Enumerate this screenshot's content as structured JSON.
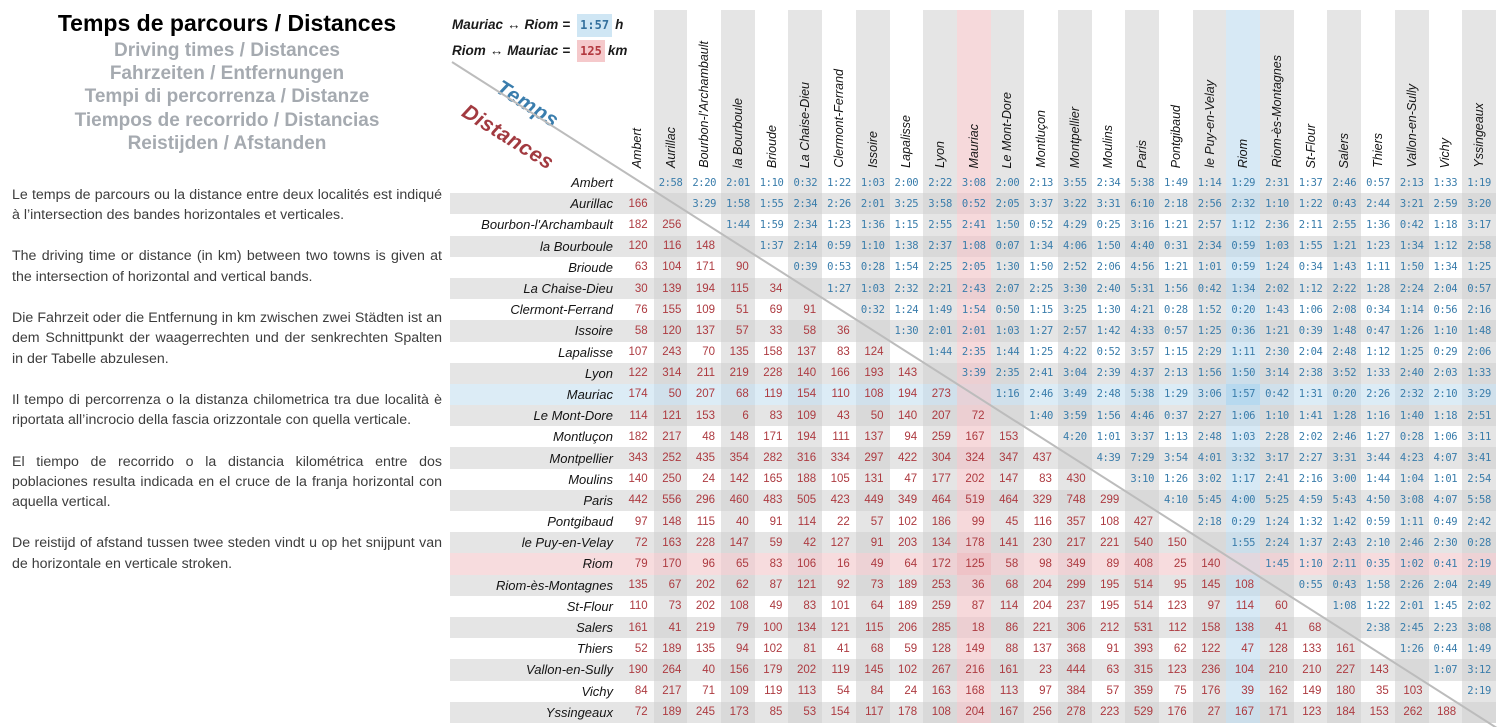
{
  "left": {
    "title": "Temps de parcours / Distances",
    "subtitles": [
      "Driving times / Distances",
      "Fahrzeiten / Entfernungen",
      "Tempi di percorrenza / Distanze",
      "Tiempos de recorrido / Distancias",
      "Reistijden / Afstanden"
    ],
    "paragraphs": [
      "Le temps de parcours ou la distance entre deux localités est indiqué à l’intersection des bandes horizontales et verticales.",
      "The driving time or distance (in km) between two towns is given at the intersection of horizontal and vertical bands.",
      "Die Fahrzeit oder die Entfernung in km zwischen zwei Städten ist an dem Schnittpunkt der waagerrechten und der senkrechten Spalten in der Tabelle abzulesen.",
      "Il tempo di percorrenza o la distanza chilometrica tra due località è riportata all’incrocio della fascia orizzontale con quella verticale.",
      "El tiempo de recorrido o la distancia kilométrica entre dos poblaciones resulta indicada en el cruce de la franja horizontal con aquella vertical.",
      "De reistijd of afstand tussen twee steden vindt u op het snijpunt van de horizontale en verticale stroken."
    ]
  },
  "legend": {
    "time_example": {
      "from": "Mauriac",
      "arrow": "↔",
      "to": "Riom",
      "equals": "=",
      "value": "1:57",
      "unit": "h"
    },
    "distance_example": {
      "from": "Riom",
      "arrow": "↔",
      "to": "Mauriac",
      "equals": "=",
      "value": "125",
      "unit": "km"
    }
  },
  "diagonal_labels": {
    "times": "Temps",
    "distances": "Distances"
  },
  "colors": {
    "time_text": "#3a7dab",
    "distance_text": "#ad3a40",
    "time_highlight_chip": "#cfe6f4",
    "distance_highlight_chip": "#f5c9cb",
    "pink_column_town": "Mauriac",
    "blue_column_town": "Riom"
  },
  "towns": [
    "Ambert",
    "Aurillac",
    "Bourbon-l'Archambault",
    "la Bourboule",
    "Brioude",
    "La Chaise-Dieu",
    "Clermont-Ferrand",
    "Issoire",
    "Lapalisse",
    "Lyon",
    "Mauriac",
    "Le Mont-Dore",
    "Montluçon",
    "Montpellier",
    "Moulins",
    "Paris",
    "Pontgibaud",
    "le Puy-en-Velay",
    "Riom",
    "Riom-ès-Montagnes",
    "St-Flour",
    "Salers",
    "Thiers",
    "Vallon-en-Sully",
    "Vichy",
    "Yssingeaux"
  ],
  "highlights": {
    "pink_index": 10,
    "blue_index": 18
  },
  "matrix": {
    "rows": [
      {
        "town": "Ambert",
        "distances_km": [],
        "times_h": [
          "2:58",
          "2:20",
          "2:01",
          "1:10",
          "0:32",
          "1:22",
          "1:03",
          "2:00",
          "2:22",
          "3:08",
          "2:00",
          "2:13",
          "3:55",
          "2:34",
          "5:38",
          "1:49",
          "1:14",
          "1:29",
          "2:31",
          "1:37",
          "2:46",
          "0:57",
          "2:13",
          "1:33",
          "1:19"
        ]
      },
      {
        "town": "Aurillac",
        "distances_km": [
          166
        ],
        "times_h": [
          "3:29",
          "1:58",
          "1:55",
          "2:34",
          "2:26",
          "2:01",
          "3:25",
          "3:58",
          "0:52",
          "2:05",
          "3:37",
          "3:22",
          "3:31",
          "6:10",
          "2:18",
          "2:56",
          "2:32",
          "1:10",
          "1:22",
          "0:43",
          "2:44",
          "3:21",
          "2:59",
          "3:20"
        ]
      },
      {
        "town": "Bourbon-l'Archambault",
        "distances_km": [
          182,
          256
        ],
        "times_h": [
          "1:44",
          "1:59",
          "2:34",
          "1:23",
          "1:36",
          "1:15",
          "2:55",
          "2:41",
          "1:50",
          "0:52",
          "4:29",
          "0:25",
          "3:16",
          "1:21",
          "2:57",
          "1:12",
          "2:36",
          "2:11",
          "2:55",
          "1:36",
          "0:42",
          "1:18",
          "3:17"
        ]
      },
      {
        "town": "la Bourboule",
        "distances_km": [
          120,
          116,
          148
        ],
        "times_h": [
          "1:37",
          "2:14",
          "0:59",
          "1:10",
          "1:38",
          "2:37",
          "1:08",
          "0:07",
          "1:34",
          "4:06",
          "1:50",
          "4:40",
          "0:31",
          "2:34",
          "0:59",
          "1:03",
          "1:55",
          "1:21",
          "1:23",
          "1:34",
          "1:12",
          "2:58"
        ]
      },
      {
        "town": "Brioude",
        "distances_km": [
          63,
          104,
          171,
          90
        ],
        "times_h": [
          "0:39",
          "0:53",
          "0:28",
          "1:54",
          "2:25",
          "2:05",
          "1:30",
          "1:50",
          "2:52",
          "2:06",
          "4:56",
          "1:21",
          "1:01",
          "0:59",
          "1:24",
          "0:34",
          "1:43",
          "1:11",
          "1:50",
          "1:34",
          "1:25"
        ]
      },
      {
        "town": "La Chaise-Dieu",
        "distances_km": [
          30,
          139,
          194,
          115,
          34
        ],
        "times_h": [
          "1:27",
          "1:03",
          "2:32",
          "2:21",
          "2:43",
          "2:07",
          "2:25",
          "3:30",
          "2:40",
          "5:31",
          "1:56",
          "0:42",
          "1:34",
          "2:02",
          "1:12",
          "2:22",
          "1:28",
          "2:24",
          "2:04",
          "0:57"
        ]
      },
      {
        "town": "Clermont-Ferrand",
        "distances_km": [
          76,
          155,
          109,
          51,
          69,
          91
        ],
        "times_h": [
          "0:32",
          "1:24",
          "1:49",
          "1:54",
          "0:50",
          "1:15",
          "3:25",
          "1:30",
          "4:21",
          "0:28",
          "1:52",
          "0:20",
          "1:43",
          "1:06",
          "2:08",
          "0:34",
          "1:14",
          "0:56",
          "2:16"
        ]
      },
      {
        "town": "Issoire",
        "distances_km": [
          58,
          120,
          137,
          57,
          33,
          58,
          36
        ],
        "times_h": [
          "1:30",
          "2:01",
          "2:01",
          "1:03",
          "1:27",
          "2:57",
          "1:42",
          "4:33",
          "0:57",
          "1:25",
          "0:36",
          "1:21",
          "0:39",
          "1:48",
          "0:47",
          "1:26",
          "1:10",
          "1:48"
        ]
      },
      {
        "town": "Lapalisse",
        "distances_km": [
          107,
          243,
          70,
          135,
          158,
          137,
          83,
          124
        ],
        "times_h": [
          "1:44",
          "2:35",
          "1:44",
          "1:25",
          "4:22",
          "0:52",
          "3:57",
          "1:15",
          "2:29",
          "1:11",
          "2:30",
          "2:04",
          "2:48",
          "1:12",
          "1:25",
          "0:29",
          "2:06"
        ]
      },
      {
        "town": "Lyon",
        "distances_km": [
          122,
          314,
          211,
          219,
          228,
          140,
          166,
          193,
          143
        ],
        "times_h": [
          "3:39",
          "2:35",
          "2:41",
          "3:04",
          "2:39",
          "4:37",
          "2:13",
          "1:56",
          "1:50",
          "3:14",
          "2:38",
          "3:52",
          "1:33",
          "2:40",
          "2:03",
          "1:33"
        ]
      },
      {
        "town": "Mauriac",
        "distances_km": [
          174,
          50,
          207,
          68,
          119,
          154,
          110,
          108,
          194,
          273
        ],
        "times_h": [
          "1:16",
          "2:46",
          "3:49",
          "2:48",
          "5:38",
          "1:29",
          "3:06",
          "1:57",
          "0:42",
          "1:31",
          "0:20",
          "2:26",
          "2:32",
          "2:10",
          "3:29"
        ]
      },
      {
        "town": "Le Mont-Dore",
        "distances_km": [
          114,
          121,
          153,
          6,
          83,
          109,
          43,
          50,
          140,
          207,
          72
        ],
        "times_h": [
          "1:40",
          "3:59",
          "1:56",
          "4:46",
          "0:37",
          "2:27",
          "1:06",
          "1:10",
          "1:41",
          "1:28",
          "1:16",
          "1:40",
          "1:18",
          "2:51"
        ]
      },
      {
        "town": "Montluçon",
        "distances_km": [
          182,
          217,
          48,
          148,
          171,
          194,
          111,
          137,
          94,
          259,
          167,
          153
        ],
        "times_h": [
          "4:20",
          "1:01",
          "3:37",
          "1:13",
          "2:48",
          "1:03",
          "2:28",
          "2:02",
          "2:46",
          "1:27",
          "0:28",
          "1:06",
          "3:11"
        ]
      },
      {
        "town": "Montpellier",
        "distances_km": [
          343,
          252,
          435,
          354,
          282,
          316,
          334,
          297,
          422,
          304,
          324,
          347,
          437
        ],
        "times_h": [
          "4:39",
          "7:29",
          "3:54",
          "4:01",
          "3:32",
          "3:17",
          "2:27",
          "3:31",
          "3:44",
          "4:23",
          "4:07",
          "3:41"
        ]
      },
      {
        "town": "Moulins",
        "distances_km": [
          140,
          250,
          24,
          142,
          165,
          188,
          105,
          131,
          47,
          177,
          202,
          147,
          83,
          430
        ],
        "times_h": [
          "3:10",
          "1:26",
          "3:02",
          "1:17",
          "2:41",
          "2:16",
          "3:00",
          "1:44",
          "1:04",
          "1:01",
          "2:54"
        ]
      },
      {
        "town": "Paris",
        "distances_km": [
          442,
          556,
          296,
          460,
          483,
          505,
          423,
          449,
          349,
          464,
          519,
          464,
          329,
          748,
          299
        ],
        "times_h": [
          "4:10",
          "5:45",
          "4:00",
          "5:25",
          "4:59",
          "5:43",
          "4:50",
          "3:08",
          "4:07",
          "5:58"
        ]
      },
      {
        "town": "Pontgibaud",
        "distances_km": [
          97,
          148,
          115,
          40,
          91,
          114,
          22,
          57,
          102,
          186,
          99,
          45,
          116,
          357,
          108,
          427
        ],
        "times_h": [
          "2:18",
          "0:29",
          "1:24",
          "1:32",
          "1:42",
          "0:59",
          "1:11",
          "0:49",
          "2:42"
        ]
      },
      {
        "town": "le Puy-en-Velay",
        "distances_km": [
          72,
          163,
          228,
          147,
          59,
          42,
          127,
          91,
          203,
          134,
          178,
          141,
          230,
          217,
          221,
          540,
          150
        ],
        "times_h": [
          "1:55",
          "2:24",
          "1:37",
          "2:43",
          "2:10",
          "2:46",
          "2:30",
          "0:28"
        ]
      },
      {
        "town": "Riom",
        "distances_km": [
          79,
          170,
          96,
          65,
          83,
          106,
          16,
          49,
          64,
          172,
          125,
          58,
          98,
          349,
          89,
          408,
          25,
          140
        ],
        "times_h": [
          "1:45",
          "1:10",
          "2:11",
          "0:35",
          "1:02",
          "0:41",
          "2:19"
        ]
      },
      {
        "town": "Riom-ès-Montagnes",
        "distances_km": [
          135,
          67,
          202,
          62,
          87,
          121,
          92,
          73,
          189,
          253,
          36,
          68,
          204,
          299,
          195,
          514,
          95,
          145,
          108
        ],
        "times_h": [
          "0:55",
          "0:43",
          "1:58",
          "2:26",
          "2:04",
          "2:49"
        ]
      },
      {
        "town": "St-Flour",
        "distances_km": [
          110,
          73,
          202,
          108,
          49,
          83,
          101,
          64,
          189,
          259,
          87,
          114,
          204,
          237,
          195,
          514,
          123,
          97,
          114,
          60
        ],
        "times_h": [
          "1:08",
          "1:22",
          "2:01",
          "1:45",
          "2:02"
        ]
      },
      {
        "town": "Salers",
        "distances_km": [
          161,
          41,
          219,
          79,
          100,
          134,
          121,
          115,
          206,
          285,
          18,
          86,
          221,
          306,
          212,
          531,
          112,
          158,
          138,
          41,
          68
        ],
        "times_h": [
          "2:38",
          "2:45",
          "2:23",
          "3:08"
        ]
      },
      {
        "town": "Thiers",
        "distances_km": [
          52,
          189,
          135,
          94,
          102,
          81,
          41,
          68,
          59,
          128,
          149,
          88,
          137,
          368,
          91,
          393,
          62,
          122,
          47,
          128,
          133,
          161
        ],
        "times_h": [
          "1:26",
          "0:44",
          "1:49"
        ]
      },
      {
        "town": "Vallon-en-Sully",
        "distances_km": [
          190,
          264,
          40,
          156,
          179,
          202,
          119,
          145,
          102,
          267,
          216,
          161,
          23,
          444,
          63,
          315,
          123,
          236,
          104,
          210,
          210,
          227,
          143
        ],
        "times_h": [
          "1:07",
          "3:12"
        ]
      },
      {
        "town": "Vichy",
        "distances_km": [
          84,
          217,
          71,
          109,
          119,
          113,
          54,
          84,
          24,
          163,
          168,
          113,
          97,
          384,
          57,
          359,
          75,
          176,
          39,
          162,
          149,
          180,
          35,
          103
        ],
        "times_h": [
          "2:19"
        ]
      },
      {
        "town": "Yssingeaux",
        "distances_km": [
          72,
          189,
          245,
          173,
          85,
          53,
          154,
          117,
          178,
          108,
          204,
          167,
          256,
          278,
          223,
          529,
          176,
          27,
          167,
          171,
          123,
          184,
          153,
          262,
          188
        ],
        "times_h": []
      }
    ]
  }
}
